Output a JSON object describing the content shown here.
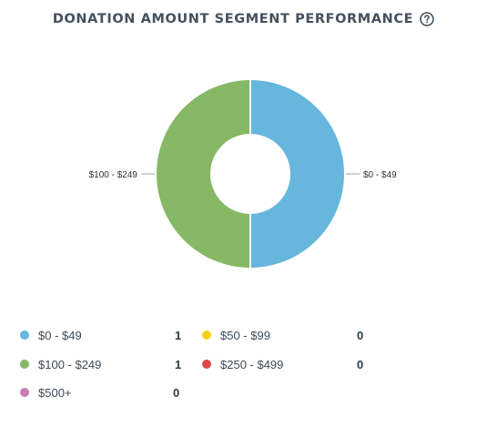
{
  "header": {
    "title": "DONATION AMOUNT SEGMENT PERFORMANCE",
    "help_icon": "question-circle-icon"
  },
  "chart_data": {
    "type": "pie",
    "donut": true,
    "title": "DONATION AMOUNT SEGMENT PERFORMANCE",
    "categories": [
      "$0 - $49",
      "$50 - $99",
      "$100 - $249",
      "$250 - $499",
      "$500+"
    ],
    "values": [
      1,
      0,
      1,
      0,
      0
    ],
    "colors": [
      "#67b6dc",
      "#f3d117",
      "#86b865",
      "#d94848",
      "#c97cb5"
    ],
    "slice_labels_shown": [
      "$0 - $49",
      "$100 - $249"
    ],
    "legend_placement": "bottom"
  },
  "legend": {
    "items": [
      {
        "label": "$0 - $49",
        "count": "1",
        "color": "#67b6dc"
      },
      {
        "label": "$50 - $99",
        "count": "0",
        "color": "#f3d117"
      },
      {
        "label": "$100 - $249",
        "count": "1",
        "color": "#86b865"
      },
      {
        "label": "$250 - $499",
        "count": "0",
        "color": "#d94848"
      },
      {
        "label": "$500+",
        "count": "0",
        "color": "#c97cb5"
      }
    ]
  }
}
